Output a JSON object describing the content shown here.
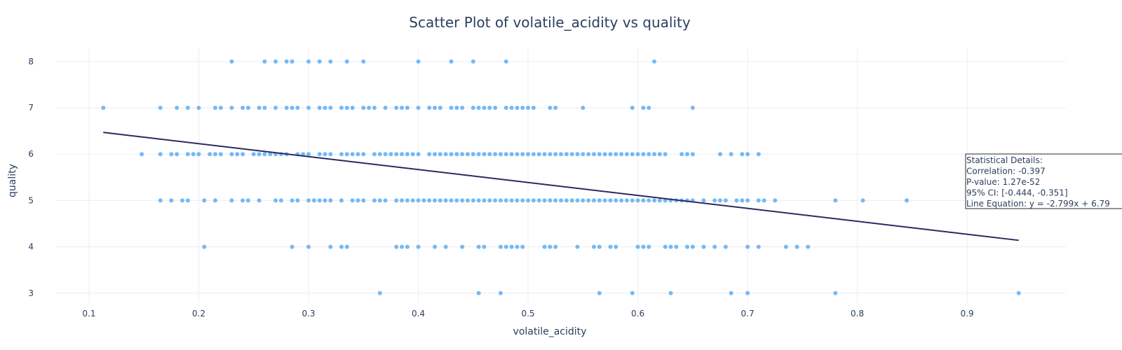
{
  "chart_data": {
    "type": "scatter",
    "title": "Scatter Plot of volatile_acidity vs quality",
    "xlabel": "volatile_acidity",
    "ylabel": "quality",
    "xlim": [
      0.07,
      0.99
    ],
    "ylim": [
      2.8,
      8.3
    ],
    "x_ticks": [
      "0.1",
      "0.2",
      "0.3",
      "0.4",
      "0.5",
      "0.6",
      "0.7",
      "0.8",
      "0.9"
    ],
    "y_ticks": [
      "3",
      "4",
      "5",
      "6",
      "7",
      "8"
    ],
    "grid": true,
    "marker_color": "#74b9f6",
    "line_color": "#2c2a5e",
    "trend_line": {
      "x": [
        0.113,
        0.947
      ],
      "y": [
        6.47,
        4.14
      ]
    },
    "stats": [
      "Statistical Details:",
      "Correlation: -0.397",
      "P-value: 1.27e-52",
      "95% CI: [-0.444, -0.351]",
      "Line Equation: y = -2.799x + 6.79"
    ],
    "series": [
      {
        "y": 8,
        "x": [
          0.23,
          0.26,
          0.27,
          0.28,
          0.285,
          0.3,
          0.31,
          0.32,
          0.335,
          0.35,
          0.4,
          0.43,
          0.45,
          0.48,
          0.615
        ]
      },
      {
        "y": 7,
        "x": [
          0.113,
          0.165,
          0.18,
          0.19,
          0.2,
          0.215,
          0.22,
          0.23,
          0.24,
          0.245,
          0.255,
          0.26,
          0.27,
          0.28,
          0.285,
          0.29,
          0.3,
          0.31,
          0.315,
          0.32,
          0.33,
          0.335,
          0.34,
          0.35,
          0.355,
          0.36,
          0.37,
          0.38,
          0.385,
          0.39,
          0.4,
          0.41,
          0.415,
          0.42,
          0.43,
          0.435,
          0.44,
          0.45,
          0.455,
          0.46,
          0.465,
          0.47,
          0.48,
          0.485,
          0.49,
          0.495,
          0.5,
          0.505,
          0.52,
          0.525,
          0.55,
          0.595,
          0.605,
          0.61,
          0.65
        ]
      },
      {
        "y": 6,
        "x": [
          0.148,
          0.165,
          0.175,
          0.18,
          0.19,
          0.195,
          0.2,
          0.21,
          0.215,
          0.22,
          0.23,
          0.235,
          0.24,
          0.25,
          0.255,
          0.26,
          0.265,
          0.27,
          0.275,
          0.28,
          0.29,
          0.295,
          0.3,
          0.31,
          0.315,
          0.32,
          0.33,
          0.335,
          0.34,
          0.345,
          0.35,
          0.36,
          0.365,
          0.37,
          0.375,
          0.38,
          0.385,
          0.39,
          0.395,
          0.4,
          0.41,
          0.415,
          0.42,
          0.425,
          0.43,
          0.435,
          0.44,
          0.445,
          0.45,
          0.455,
          0.46,
          0.465,
          0.47,
          0.475,
          0.48,
          0.485,
          0.49,
          0.495,
          0.5,
          0.505,
          0.51,
          0.515,
          0.52,
          0.525,
          0.53,
          0.535,
          0.54,
          0.545,
          0.55,
          0.555,
          0.56,
          0.565,
          0.57,
          0.575,
          0.58,
          0.585,
          0.59,
          0.595,
          0.6,
          0.605,
          0.61,
          0.615,
          0.62,
          0.625,
          0.64,
          0.645,
          0.65,
          0.675,
          0.685,
          0.695,
          0.7,
          0.71
        ]
      },
      {
        "y": 5,
        "x": [
          0.165,
          0.175,
          0.185,
          0.19,
          0.205,
          0.215,
          0.23,
          0.24,
          0.245,
          0.255,
          0.27,
          0.275,
          0.285,
          0.29,
          0.3,
          0.305,
          0.31,
          0.315,
          0.32,
          0.33,
          0.34,
          0.345,
          0.35,
          0.36,
          0.365,
          0.37,
          0.38,
          0.385,
          0.39,
          0.395,
          0.4,
          0.405,
          0.41,
          0.415,
          0.42,
          0.425,
          0.43,
          0.435,
          0.44,
          0.445,
          0.45,
          0.455,
          0.46,
          0.465,
          0.47,
          0.475,
          0.48,
          0.485,
          0.49,
          0.495,
          0.5,
          0.505,
          0.51,
          0.515,
          0.52,
          0.525,
          0.53,
          0.535,
          0.54,
          0.545,
          0.55,
          0.555,
          0.56,
          0.565,
          0.57,
          0.575,
          0.58,
          0.585,
          0.59,
          0.595,
          0.6,
          0.605,
          0.61,
          0.615,
          0.62,
          0.625,
          0.63,
          0.635,
          0.64,
          0.645,
          0.65,
          0.66,
          0.67,
          0.675,
          0.68,
          0.69,
          0.695,
          0.7,
          0.71,
          0.715,
          0.725,
          0.78,
          0.805,
          0.845
        ]
      },
      {
        "y": 4,
        "x": [
          0.205,
          0.285,
          0.3,
          0.32,
          0.33,
          0.335,
          0.38,
          0.385,
          0.39,
          0.4,
          0.415,
          0.425,
          0.44,
          0.455,
          0.46,
          0.475,
          0.48,
          0.485,
          0.49,
          0.495,
          0.515,
          0.52,
          0.525,
          0.545,
          0.56,
          0.565,
          0.575,
          0.58,
          0.6,
          0.605,
          0.61,
          0.625,
          0.63,
          0.635,
          0.645,
          0.65,
          0.66,
          0.67,
          0.68,
          0.7,
          0.71,
          0.735,
          0.745,
          0.755
        ]
      },
      {
        "y": 3,
        "x": [
          0.365,
          0.455,
          0.475,
          0.565,
          0.595,
          0.63,
          0.685,
          0.7,
          0.78,
          0.947
        ]
      }
    ]
  }
}
